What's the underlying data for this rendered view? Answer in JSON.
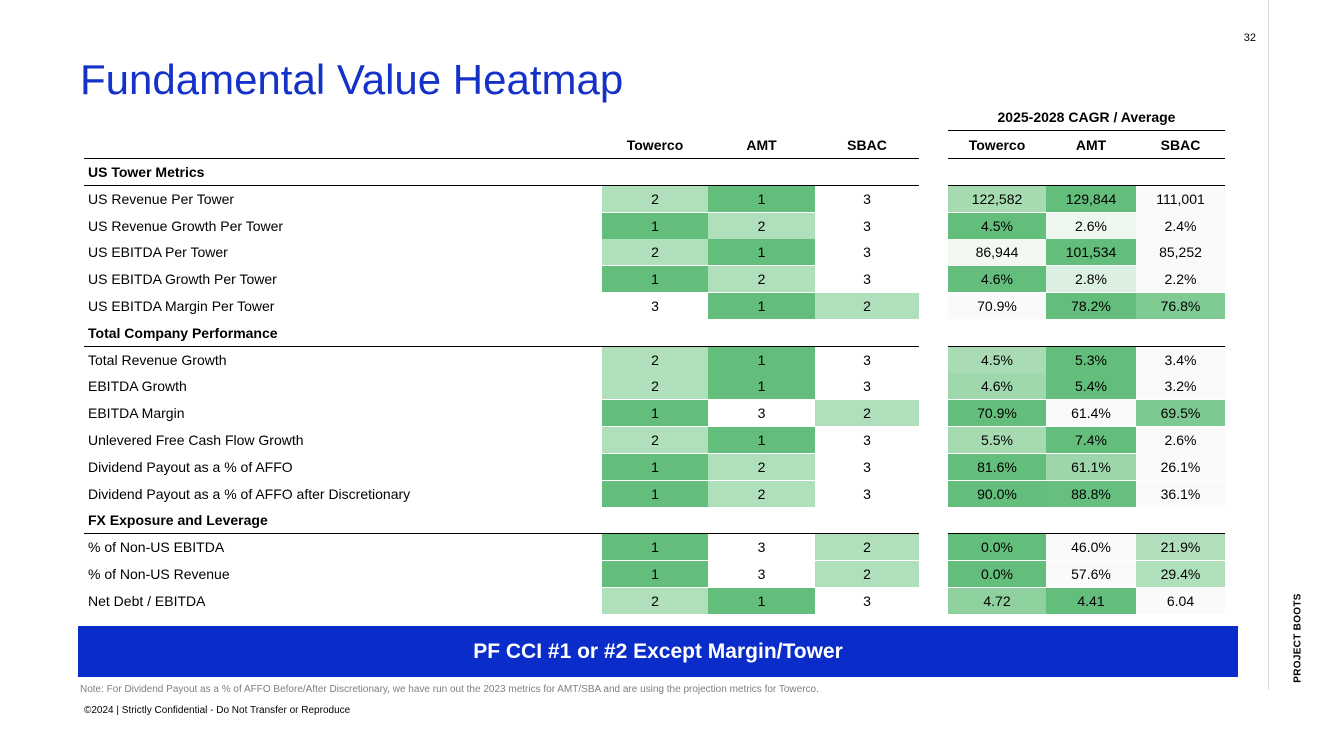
{
  "page_number": "32",
  "side_label": "PROJECT BOOTS",
  "title": "Fundamental Value Heatmap",
  "cagr_header": "2025-2028 CAGR / Average",
  "rank_columns": [
    "Towerco",
    "AMT",
    "SBAC"
  ],
  "value_columns": [
    "Towerco",
    "AMT",
    "SBAC"
  ],
  "colors": {
    "title_blue": "#1432c8",
    "banner_blue": "#0a2cc8",
    "rank_1": "#63be7b",
    "rank_2": "#b0dfbb",
    "rank_3": "#ffffff",
    "neutral": "#fafafa"
  },
  "sections": [
    {
      "label": "US Tower Metrics",
      "rows": [
        {
          "label": "US Revenue Per Tower",
          "ranks": [
            "2",
            "1",
            "3"
          ],
          "values": [
            "122,582",
            "129,844",
            "111,001"
          ],
          "value_colors": [
            "#a6dbb2",
            "#63be7b",
            "#fafafa"
          ]
        },
        {
          "label": "US Revenue Growth Per Tower",
          "ranks": [
            "1",
            "2",
            "3"
          ],
          "values": [
            "4.5%",
            "2.6%",
            "2.4%"
          ],
          "value_colors": [
            "#63be7b",
            "#eef8f0",
            "#fafafa"
          ]
        },
        {
          "label": "US EBITDA Per Tower",
          "ranks": [
            "2",
            "1",
            "3"
          ],
          "values": [
            "86,944",
            "101,534",
            "85,252"
          ],
          "value_colors": [
            "#f2f9f3",
            "#63be7b",
            "#fafafa"
          ]
        },
        {
          "label": "US EBITDA Growth Per Tower",
          "ranks": [
            "1",
            "2",
            "3"
          ],
          "values": [
            "4.6%",
            "2.8%",
            "2.2%"
          ],
          "value_colors": [
            "#63be7b",
            "#dcf0e1",
            "#fafafa"
          ]
        },
        {
          "label": "US EBITDA Margin Per Tower",
          "ranks": [
            "3",
            "1",
            "2"
          ],
          "values": [
            "70.9%",
            "78.2%",
            "76.8%"
          ],
          "value_colors": [
            "#fafafa",
            "#63be7b",
            "#7fc993"
          ]
        }
      ]
    },
    {
      "label": "Total Company Performance",
      "rows": [
        {
          "label": "Total Revenue Growth",
          "ranks": [
            "2",
            "1",
            "3"
          ],
          "values": [
            "4.5%",
            "5.3%",
            "3.4%"
          ],
          "value_colors": [
            "#a9dcb4",
            "#63be7b",
            "#fafafa"
          ]
        },
        {
          "label": "EBITDA Growth",
          "ranks": [
            "2",
            "1",
            "3"
          ],
          "values": [
            "4.6%",
            "5.4%",
            "3.2%"
          ],
          "value_colors": [
            "#a0d8ad",
            "#63be7b",
            "#fafafa"
          ]
        },
        {
          "label": "EBITDA Margin",
          "ranks": [
            "1",
            "3",
            "2"
          ],
          "values": [
            "70.9%",
            "61.4%",
            "69.5%"
          ],
          "value_colors": [
            "#63be7b",
            "#fafafa",
            "#7ec892"
          ]
        },
        {
          "label": "Unlevered Free Cash Flow Growth",
          "ranks": [
            "2",
            "1",
            "3"
          ],
          "values": [
            "5.5%",
            "7.4%",
            "2.6%"
          ],
          "value_colors": [
            "#a6dbb2",
            "#63be7b",
            "#fafafa"
          ]
        },
        {
          "label": "Dividend Payout as a % of AFFO",
          "ranks": [
            "1",
            "2",
            "3"
          ],
          "values": [
            "81.6%",
            "61.1%",
            "26.1%"
          ],
          "value_colors": [
            "#63be7b",
            "#9dd6aa",
            "#fafafa"
          ]
        },
        {
          "label": "Dividend Payout as a % of AFFO after Discretionary",
          "ranks": [
            "1",
            "2",
            "3"
          ],
          "values": [
            "90.0%",
            "88.8%",
            "36.1%"
          ],
          "value_colors": [
            "#63be7b",
            "#66bf7e",
            "#fafafa"
          ]
        }
      ]
    },
    {
      "label": "FX Exposure and Leverage",
      "rows": [
        {
          "label": "% of Non-US EBITDA",
          "ranks": [
            "1",
            "3",
            "2"
          ],
          "values": [
            "0.0%",
            "46.0%",
            "21.9%"
          ],
          "value_colors": [
            "#63be7b",
            "#fafafa",
            "#b1dfbb"
          ]
        },
        {
          "label": "% of Non-US Revenue",
          "ranks": [
            "1",
            "3",
            "2"
          ],
          "values": [
            "0.0%",
            "57.6%",
            "29.4%"
          ],
          "value_colors": [
            "#63be7b",
            "#fafafa",
            "#b0dfbb"
          ]
        },
        {
          "label": "Net Debt / EBITDA",
          "ranks": [
            "2",
            "1",
            "3"
          ],
          "values": [
            "4.72",
            "4.41",
            "6.04"
          ],
          "value_colors": [
            "#8fd09f",
            "#63be7b",
            "#fafafa"
          ]
        }
      ]
    }
  ],
  "banner": "PF CCI #1 or #2 Except Margin/Tower",
  "note": "Note: For Dividend Payout as a % of AFFO Before/After Discretionary, we have run out the 2023 metrics for AMT/SBA and are using the projection metrics for Towerco.",
  "footer": "©2024  |  Strictly Confidential - Do Not Transfer or Reproduce"
}
